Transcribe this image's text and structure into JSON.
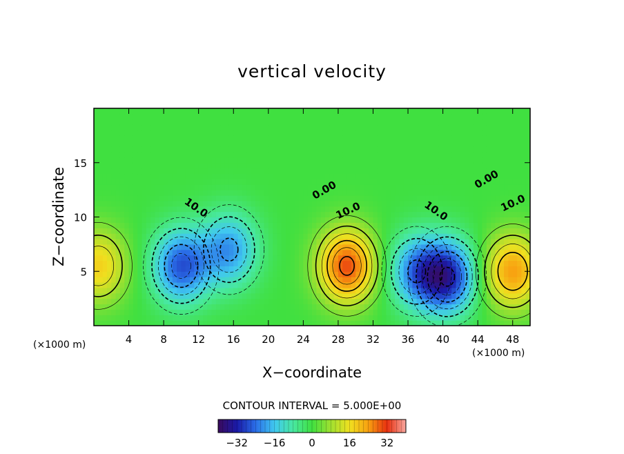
{
  "chart_data": {
    "type": "heatmap",
    "title": "vertical velocity",
    "xlabel": "X−coordinate",
    "ylabel": "Z−coordinate",
    "x_unit": "(×1000 m)",
    "y_unit": "(×1000 m)",
    "xlim": [
      0,
      50
    ],
    "ylim": [
      0,
      20
    ],
    "x_ticks": [
      4,
      8,
      12,
      16,
      20,
      24,
      28,
      32,
      36,
      40,
      44,
      48
    ],
    "y_ticks": [
      5,
      10,
      15
    ],
    "contour_interval_text": "CONTOUR INTERVAL = 5.000E+00",
    "contour_labels": [
      "0.00",
      "10.0"
    ],
    "colorbar": {
      "ticks": [
        -32,
        -16,
        0,
        16,
        32
      ],
      "tick_labels": [
        "−32",
        "−16",
        "0",
        "16",
        "32"
      ],
      "range": [
        -40,
        40
      ],
      "colors": [
        "#3a0a5c",
        "#1a1aa8",
        "#2a6ee8",
        "#40c8f0",
        "#48e8a0",
        "#40e040",
        "#a0e030",
        "#f0e020",
        "#f8a010",
        "#e83010",
        "#f8a8a0"
      ]
    },
    "cells": [
      {
        "x": 0.5,
        "z": 5.5,
        "w": 18
      },
      {
        "x": 10,
        "z": 5.5,
        "w": -26
      },
      {
        "x": 15.5,
        "z": 7,
        "w": -20
      },
      {
        "x": 29,
        "z": 5.5,
        "w": 30
      },
      {
        "x": 37,
        "z": 5,
        "w": -20
      },
      {
        "x": 40.5,
        "z": 4.5,
        "w": -30
      },
      {
        "x": 48,
        "z": 5,
        "w": 24
      }
    ]
  }
}
